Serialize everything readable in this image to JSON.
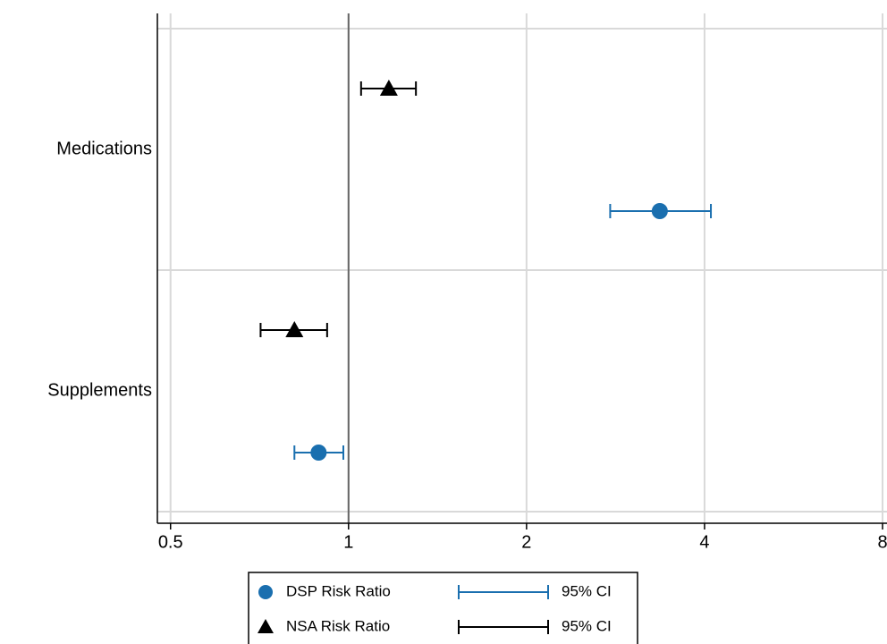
{
  "chart_data": {
    "type": "forest",
    "categories": [
      "Medications",
      "Supplements"
    ],
    "series": [
      {
        "name": "DSP Risk Ratio",
        "ci_name": "95% CI",
        "color": "#1a6faf",
        "marker": "circle",
        "values": [
          3.36,
          0.89
        ],
        "lower": [
          2.77,
          0.81
        ],
        "upper": [
          4.1,
          0.98
        ]
      },
      {
        "name": "NSA Risk Ratio",
        "ci_name": "95% CI",
        "color": "#000000",
        "marker": "triangle",
        "values": [
          1.17,
          0.81
        ],
        "lower": [
          1.05,
          0.71
        ],
        "upper": [
          1.3,
          0.92
        ]
      }
    ],
    "xlim": [
      0.475,
      8.14
    ],
    "xticks": [
      0.5,
      1,
      2,
      4,
      8
    ],
    "log_x": true,
    "grid": true,
    "reference_line": 1,
    "legend": "bottom"
  }
}
